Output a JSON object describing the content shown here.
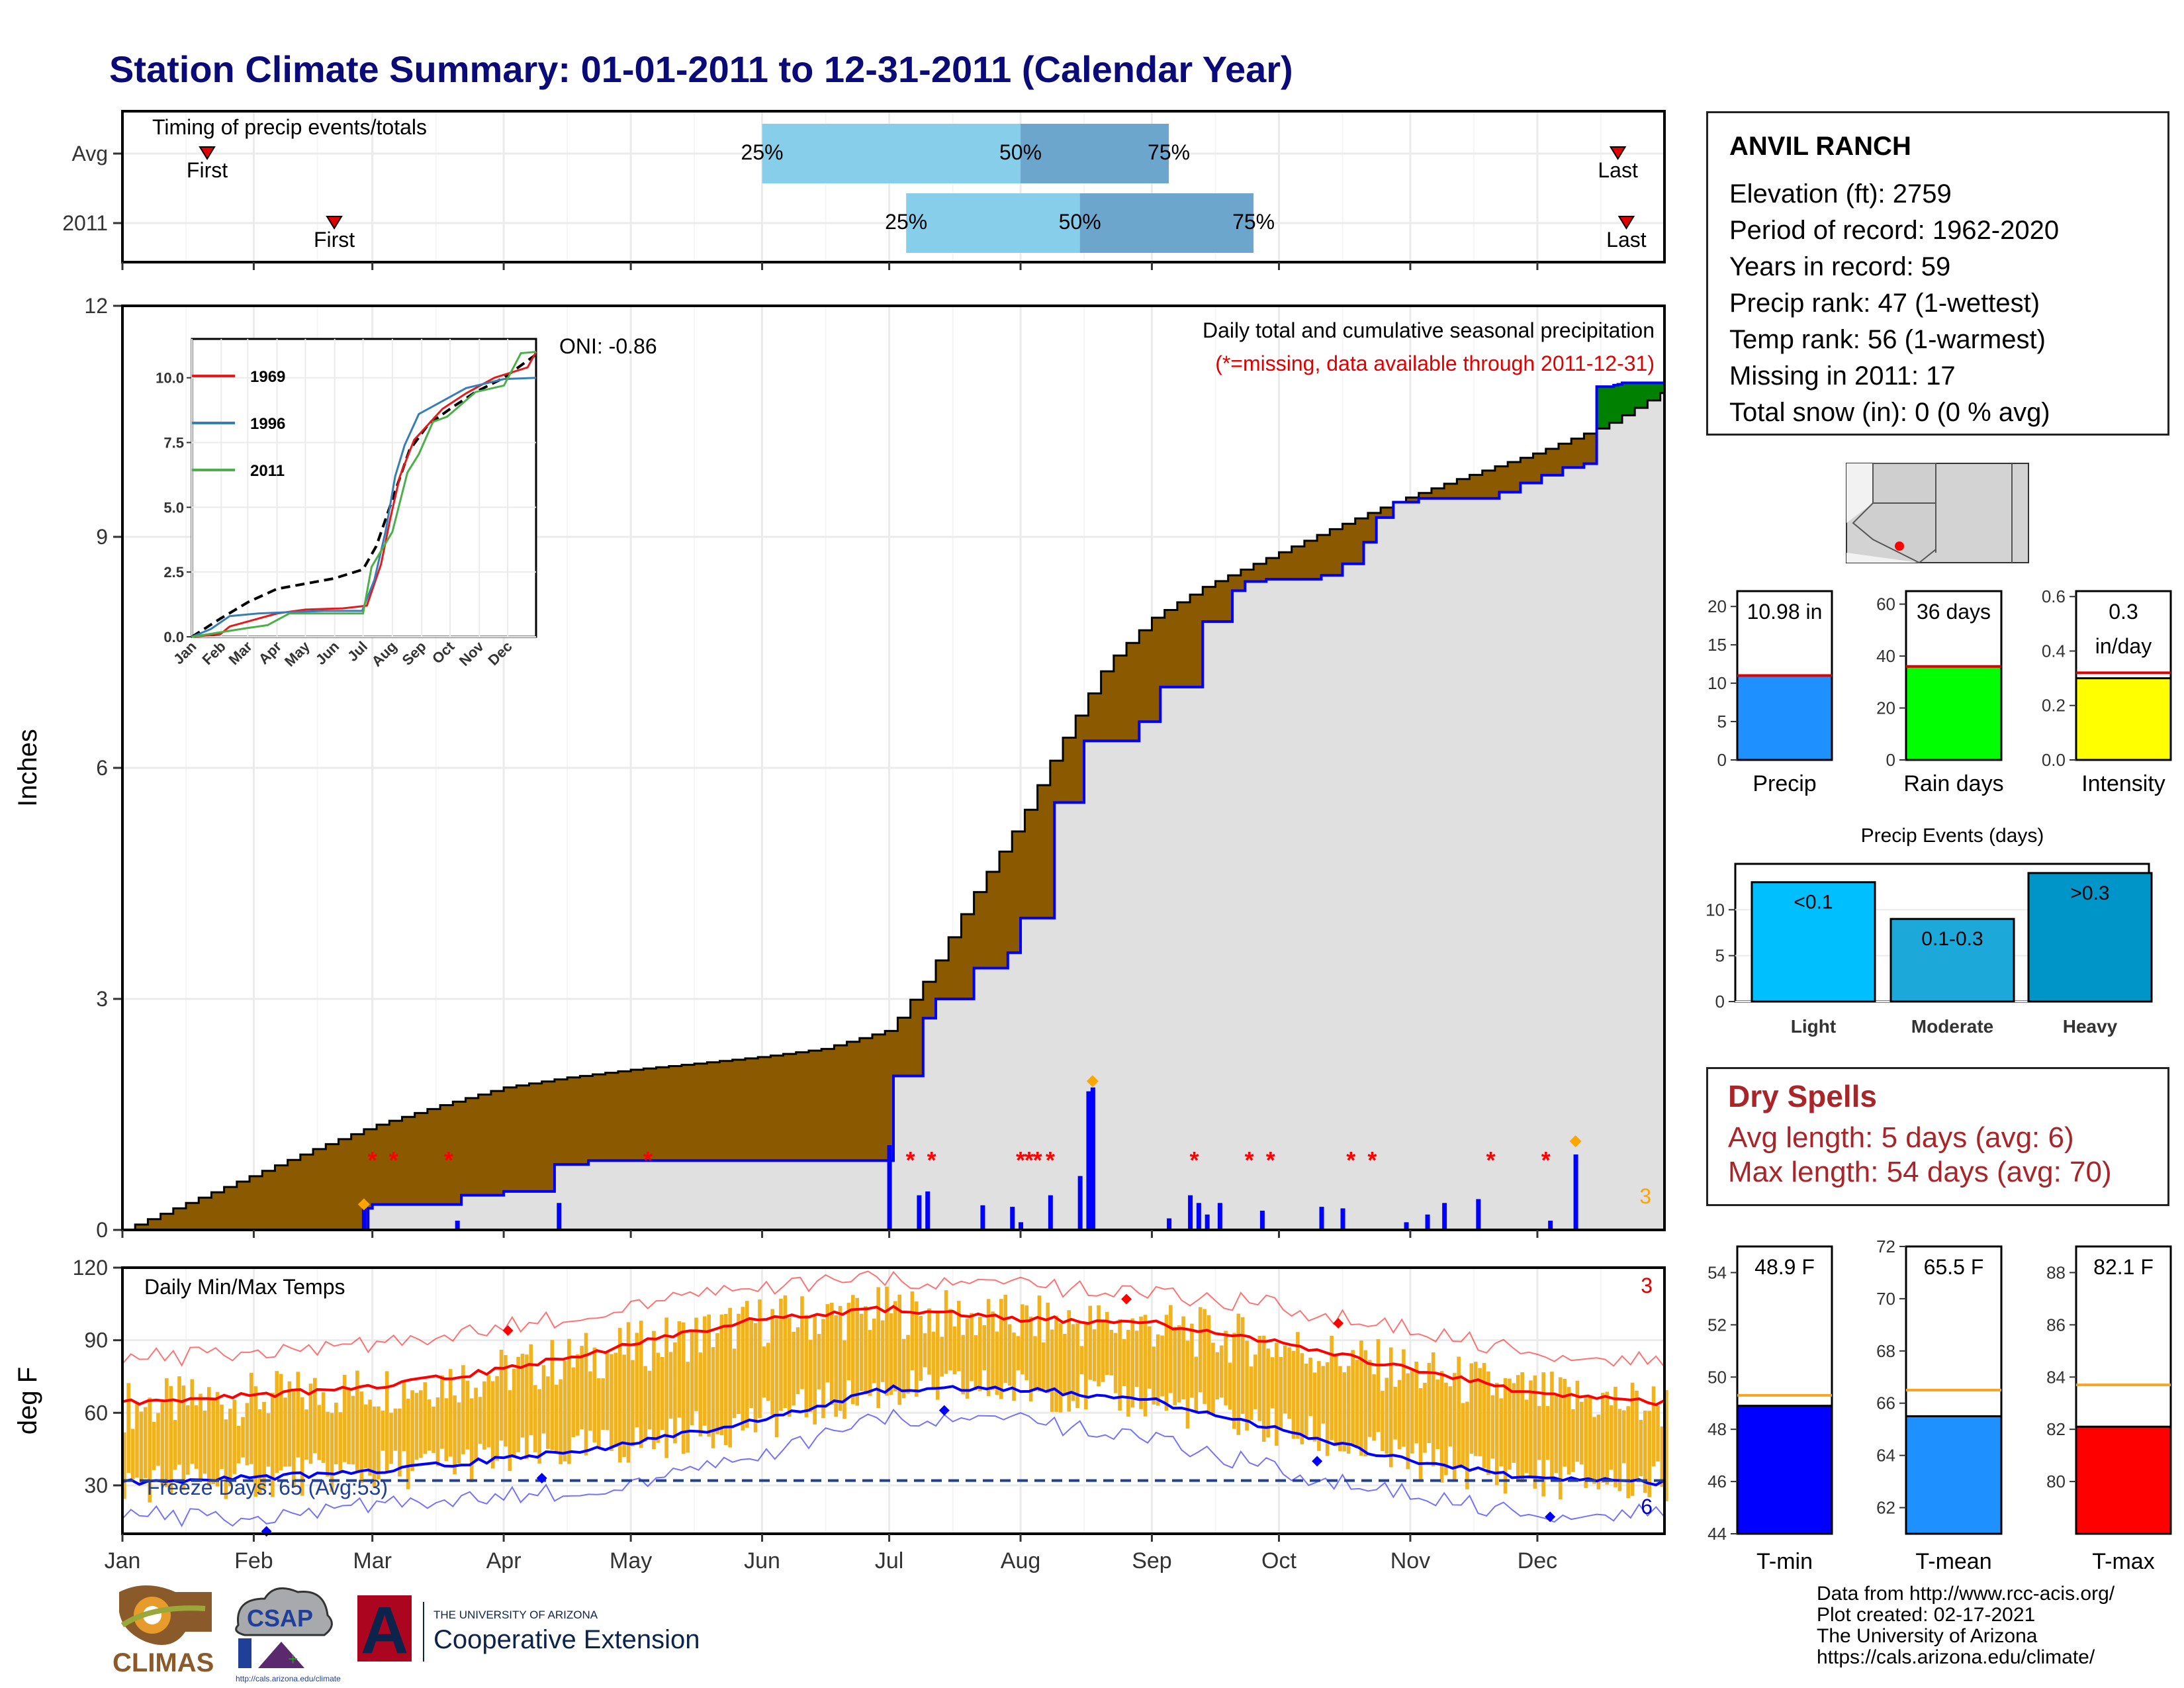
{
  "page": {
    "title": "Station Climate Summary: 01-01-2011 to 12-31-2011 (Calendar Year)"
  },
  "station": {
    "name": "ANVIL RANCH",
    "rows": [
      "Elevation (ft): 2759",
      "Period of record: 1962-2020",
      "Years in record: 59",
      "Precip rank: 47 (1-wettest)",
      "Temp rank: 56 (1-warmest)",
      "Missing in 2011: 17",
      "Total snow (in): 0 (0 % avg)"
    ],
    "map_marker_color": "#ff0000"
  },
  "dry_spells": {
    "title": "Dry Spells",
    "avg_text": "Avg length: 5 days (avg: 6)",
    "max_text": "Max length: 54 days (avg: 70)",
    "color": "#a8262a"
  },
  "credits": {
    "lines": [
      "Data from http://www.rcc-acis.org/",
      "Plot created: 02-17-2021",
      "The University of Arizona",
      "https://cals.arizona.edu/climate/"
    ]
  },
  "logos": {
    "climas": "CLIMAS",
    "csap": "CSAP",
    "csap_url": "http://cals.arizona.edu/climate",
    "ua_small": "THE UNIVERSITY OF ARIZONA",
    "ua_big": "Cooperative Extension",
    "ua_letter": "A"
  },
  "colors": {
    "frame": "#000000",
    "cumulative_fill": "#8b5a00",
    "surplus_fill": "#008000",
    "avg_area_fill": "#e0e0e0",
    "observed_line": "#0000ff",
    "missing_marker": "#ff0000",
    "event_marker": "#ffa500",
    "timing_light": "#87ceeb",
    "timing_dark": "#6ca6cd",
    "temp_bar": "#f0b21f",
    "tmax_avg": "#ff0000",
    "tmin_avg": "#0000ff",
    "freeze_line": "#1f3f99",
    "grid": "#ebebeb"
  },
  "chart_data": [
    {
      "id": "timing",
      "type": "range-bar",
      "title": "Timing of precip events/totals",
      "rows": [
        {
          "label": "Avg",
          "first": "Jan 21",
          "p25": "Jun 01",
          "p50": "Aug 01",
          "p75": "Sep 05",
          "last": "Dec 20"
        },
        {
          "label": "2011",
          "first": "Feb 20",
          "p25": "Jul 05",
          "p50": "Aug 15",
          "p75": "Sep 25",
          "last": "Dec 22"
        }
      ],
      "marker_labels": {
        "first": "First",
        "last": "Last",
        "p25": "25%",
        "p50": "50%",
        "p75": "75%"
      }
    },
    {
      "id": "precip",
      "type": "area",
      "title": "Daily total and cumulative seasonal precipitation",
      "subtitle": "(*=missing, data available through 2011-12-31)",
      "ylabel": "Inches",
      "ylim": [
        0,
        12
      ],
      "yticks": [
        "0",
        "3",
        "6",
        "9",
        "12"
      ],
      "oni_text": "ONI: -0.86",
      "corner_count": "3",
      "avg_cumulative": {
        "day": [
          0,
          15,
          31,
          45,
          59,
          75,
          90,
          105,
          120,
          135,
          151,
          165,
          181,
          190,
          200,
          212,
          220,
          232,
          243,
          255,
          265,
          273,
          285,
          300,
          315,
          334,
          350,
          364
        ],
        "value": [
          0,
          0.35,
          0.72,
          1.05,
          1.35,
          1.62,
          1.85,
          1.98,
          2.08,
          2.16,
          2.25,
          2.35,
          2.6,
          3.3,
          4.3,
          5.35,
          6.2,
          7.35,
          7.95,
          8.35,
          8.6,
          8.8,
          9.1,
          9.45,
          9.75,
          10.1,
          10.45,
          10.9
        ]
      },
      "observed_cumulative": {
        "day": [
          0,
          31,
          55,
          58,
          59,
          78,
          80,
          90,
          100,
          102,
          110,
          151,
          181,
          182,
          189,
          192,
          201,
          209,
          212,
          220,
          227,
          240,
          245,
          255,
          262,
          265,
          270,
          283,
          288,
          293,
          296,
          300,
          306,
          325,
          330,
          335,
          340,
          345,
          348,
          352,
          353,
          354,
          364
        ],
        "value": [
          0,
          0,
          0,
          0.28,
          0.33,
          0.33,
          0.45,
          0.5,
          0.5,
          0.85,
          0.9,
          0.9,
          0.9,
          2.0,
          2.75,
          3.0,
          3.4,
          3.6,
          4.05,
          5.55,
          6.35,
          6.6,
          7.05,
          7.9,
          8.3,
          8.42,
          8.45,
          8.5,
          8.65,
          8.93,
          9.25,
          9.45,
          9.5,
          9.58,
          9.7,
          9.8,
          9.9,
          9.95,
          10.95,
          10.97,
          10.98,
          11.0,
          10.98
        ]
      },
      "daily_bars": {
        "day": [
          57,
          79,
          103,
          181,
          188,
          190,
          203,
          210,
          212,
          219,
          226,
          228,
          229,
          247,
          252,
          254,
          256,
          259,
          269,
          283,
          288,
          303,
          308,
          312,
          320,
          337,
          343
        ],
        "value": [
          0.28,
          0.12,
          0.35,
          1.1,
          0.45,
          0.5,
          0.32,
          0.3,
          0.1,
          0.45,
          0.7,
          1.8,
          1.85,
          0.15,
          0.45,
          0.35,
          0.2,
          0.35,
          0.25,
          0.3,
          0.28,
          0.1,
          0.2,
          0.35,
          0.4,
          0.12,
          0.98
        ]
      },
      "missing_days": [
        59,
        64,
        77,
        124,
        186,
        191,
        212,
        214,
        216,
        219,
        253,
        266,
        271,
        290,
        295,
        323,
        336
      ],
      "event_days": [
        57,
        229,
        343
      ],
      "event_values": [
        0.28,
        1.88,
        1.1
      ],
      "inset": {
        "type": "line",
        "xlabels": [
          "Jan",
          "Feb",
          "Mar",
          "Apr",
          "May",
          "Jun",
          "Jul",
          "Aug",
          "Sep",
          "Oct",
          "Nov",
          "Dec"
        ],
        "yticks": [
          "0.0",
          "2.5",
          "5.0",
          "7.5",
          "10.0"
        ],
        "ylim": [
          0,
          11.5
        ],
        "series": [
          {
            "name": "1969",
            "color": "#e41a1c",
            "day": [
              0,
              30,
              40,
              60,
              90,
              120,
              160,
              185,
              200,
              210,
              220,
              235,
              250,
              265,
              290,
              320,
              355,
              364
            ],
            "value": [
              0,
              0.1,
              0.4,
              0.6,
              0.9,
              1.05,
              1.1,
              1.2,
              2.8,
              4.6,
              6.2,
              7.6,
              8.2,
              8.8,
              9.4,
              10.0,
              10.4,
              11.0
            ]
          },
          {
            "name": "1996",
            "color": "#377eb8",
            "day": [
              0,
              20,
              40,
              70,
              100,
              140,
              180,
              193,
              205,
              215,
              225,
              240,
              260,
              290,
              330,
              364
            ],
            "value": [
              0,
              0.3,
              0.8,
              0.9,
              0.95,
              1.0,
              1.0,
              2.2,
              4.1,
              6.2,
              7.4,
              8.6,
              9.0,
              9.6,
              9.95,
              10.0
            ]
          },
          {
            "name": "2011",
            "color": "#4daf4a",
            "day": [
              0,
              57,
              80,
              103,
              181,
              190,
              212,
              228,
              240,
              255,
              270,
              300,
              330,
              348,
              364
            ],
            "value": [
              0,
              0.33,
              0.45,
              0.9,
              0.9,
              2.7,
              4.05,
              6.35,
              7.05,
              8.3,
              8.5,
              9.45,
              9.7,
              10.95,
              11.0
            ]
          }
        ],
        "avg_series": {
          "name": "Avg",
          "color": "#000000",
          "day": [
            0,
            30,
            60,
            90,
            120,
            150,
            181,
            195,
            212,
            230,
            250,
            275,
            300,
            330,
            364
          ],
          "value": [
            0,
            0.7,
            1.35,
            1.85,
            2.05,
            2.25,
            2.6,
            3.5,
            5.3,
            7.2,
            8.2,
            8.85,
            9.45,
            10.0,
            10.9
          ]
        }
      }
    },
    {
      "id": "temps",
      "type": "bar",
      "title": "Daily Min/Max Temps",
      "ylabel": "deg F",
      "ylim": [
        10,
        120
      ],
      "yticks": [
        "30",
        "60",
        "90",
        "120"
      ],
      "freeze_text": "Freeze Days: 65 (Avg:53)",
      "freeze_level": 32,
      "corner_top": "3",
      "corner_bottom": "6",
      "xlabels": [
        "Jan",
        "Feb",
        "Mar",
        "Apr",
        "May",
        "Jun",
        "Jul",
        "Aug",
        "Sep",
        "Oct",
        "Nov",
        "Dec"
      ],
      "month_starts": [
        0,
        31,
        59,
        90,
        120,
        151,
        181,
        212,
        243,
        273,
        304,
        334
      ],
      "normal_max": {
        "day": [
          0,
          30,
          60,
          90,
          120,
          150,
          181,
          212,
          243,
          273,
          304,
          334,
          364
        ],
        "value": [
          64,
          67,
          71,
          78,
          88,
          99,
          103,
          99,
          97,
          89,
          78,
          68,
          64
        ]
      },
      "normal_min": {
        "day": [
          0,
          30,
          60,
          90,
          120,
          150,
          181,
          212,
          243,
          273,
          304,
          334,
          364
        ],
        "value": [
          31,
          33,
          36,
          41,
          47,
          57,
          70,
          70,
          65,
          53,
          40,
          33,
          31
        ]
      },
      "record_max": {
        "day": [
          0,
          30,
          60,
          90,
          120,
          150,
          181,
          212,
          243,
          273,
          304,
          334,
          364
        ],
        "value": [
          82,
          85,
          88,
          95,
          104,
          112,
          115,
          112,
          110,
          104,
          94,
          85,
          82
        ]
      },
      "record_min": {
        "day": [
          0,
          30,
          60,
          90,
          120,
          150,
          181,
          212,
          243,
          273,
          304,
          334,
          364
        ],
        "value": [
          18,
          16,
          22,
          25,
          30,
          42,
          58,
          56,
          50,
          36,
          26,
          18,
          20
        ]
      },
      "highlight_points": [
        {
          "day": 91,
          "value": 94,
          "color": "#ff0000"
        },
        {
          "day": 237,
          "value": 107,
          "color": "#ff0000"
        },
        {
          "day": 287,
          "value": 97,
          "color": "#ff0000"
        },
        {
          "day": 34,
          "value": 11,
          "color": "#0000ff"
        },
        {
          "day": 99,
          "value": 33,
          "color": "#0000ff"
        },
        {
          "day": 194,
          "value": 61,
          "color": "#0000ff"
        },
        {
          "day": 282,
          "value": 40,
          "color": "#0000ff"
        },
        {
          "day": 337,
          "value": 17,
          "color": "#0000ff"
        }
      ]
    },
    {
      "id": "totals",
      "type": "bar",
      "panels": [
        {
          "label": "Precip",
          "value": 10.98,
          "avg": 11.0,
          "ylim": [
            0,
            22
          ],
          "yticks": [
            "0",
            "5",
            "10",
            "15",
            "20"
          ],
          "text_lines": [
            "10.98 in"
          ],
          "color": "#1e90ff"
        },
        {
          "label": "Rain days",
          "value": 36,
          "avg": 36,
          "ylim": [
            0,
            65
          ],
          "yticks": [
            "0",
            "20",
            "40",
            "60"
          ],
          "text_lines": [
            "36 days"
          ],
          "color": "#00ff00"
        },
        {
          "label": "Intensity",
          "value": 0.3,
          "avg": 0.32,
          "ylim": [
            0,
            0.62
          ],
          "yticks": [
            "0.0",
            "0.2",
            "0.4",
            "0.6"
          ],
          "text_lines": [
            "0.3",
            "in/day"
          ],
          "color": "#ffff00"
        }
      ]
    },
    {
      "id": "events",
      "type": "bar",
      "title": "Precip Events (days)",
      "categories": [
        "Light",
        "Moderate",
        "Heavy"
      ],
      "bar_labels": [
        "<0.1",
        "0.1-0.3",
        ">0.3"
      ],
      "values": [
        13,
        9,
        14
      ],
      "colors": [
        "#00bfff",
        "#1ca9d9",
        "#0095c8"
      ],
      "ylim": [
        0,
        15
      ],
      "yticks": [
        "0",
        "5",
        "10"
      ]
    },
    {
      "id": "temp_totals",
      "type": "bar",
      "panels": [
        {
          "label": "T-min",
          "value": 48.9,
          "avg": 49.3,
          "ylim": [
            44,
            55
          ],
          "yticks": [
            "44",
            "46",
            "48",
            "50",
            "52",
            "54"
          ],
          "text": "48.9 F",
          "color": "#0000ff"
        },
        {
          "label": "T-mean",
          "value": 65.5,
          "avg": 66.5,
          "ylim": [
            61,
            72
          ],
          "yticks": [
            "62",
            "64",
            "66",
            "68",
            "70",
            "72"
          ],
          "text": "65.5 F",
          "color": "#1e90ff"
        },
        {
          "label": "T-max",
          "value": 82.1,
          "avg": 83.7,
          "ylim": [
            78,
            89
          ],
          "yticks": [
            "80",
            "82",
            "84",
            "86",
            "88"
          ],
          "text": "82.1 F",
          "color": "#ff0000"
        }
      ]
    }
  ]
}
